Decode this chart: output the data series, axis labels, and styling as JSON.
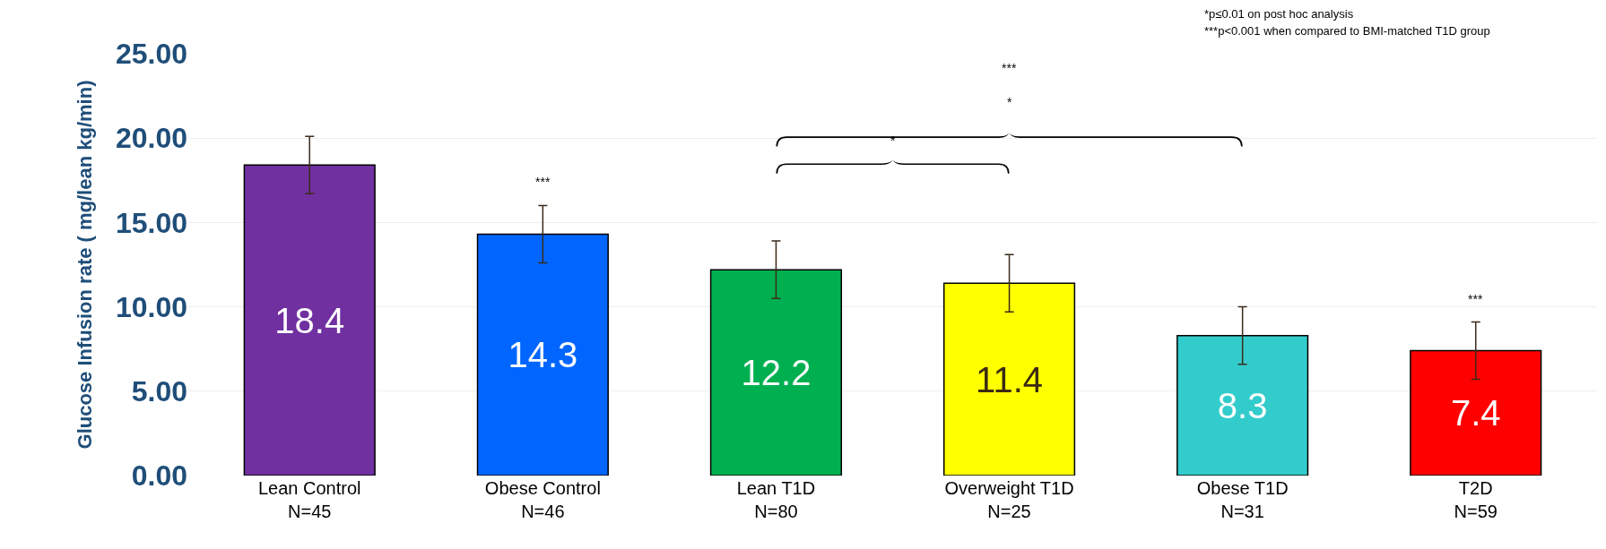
{
  "chart_data": {
    "type": "bar",
    "ylabel": "Glucose Infusion rate ( mg/lean kg/min)",
    "categories": [
      "Lean Control\nN=45",
      "Obese Control\nN=46",
      "Lean T1D\nN=80",
      "Overweight T1D\nN=25",
      "Obese T1D\nN=31",
      "T2D\nN=59"
    ],
    "values": [
      18.4,
      14.3,
      12.2,
      11.4,
      8.3,
      7.4
    ],
    "colors": [
      "#7030a0",
      "#0066ff",
      "#00b050",
      "#ffff00",
      "#33cccc",
      "#ff0000"
    ],
    "errors": [
      1.7,
      1.7,
      1.7,
      1.7,
      1.7,
      1.7
    ],
    "data_labels": true,
    "ylim": [
      0,
      25
    ],
    "yticks": [
      {
        "value": 0,
        "label": "0.00"
      },
      {
        "value": 5,
        "label": "5.00"
      },
      {
        "value": 10,
        "label": "10.00"
      },
      {
        "value": 15,
        "label": "15.00"
      },
      {
        "value": 20,
        "label": "20.00"
      },
      {
        "value": 25,
        "label": "25.00"
      }
    ],
    "grid": "y",
    "annotations": [
      "***",
      "***",
      "*",
      "*",
      "***",
      "*p≤0.01 on post hoc analysis",
      "***p<0.001 when compared to BMI-matched T1D group"
    ]
  }
}
